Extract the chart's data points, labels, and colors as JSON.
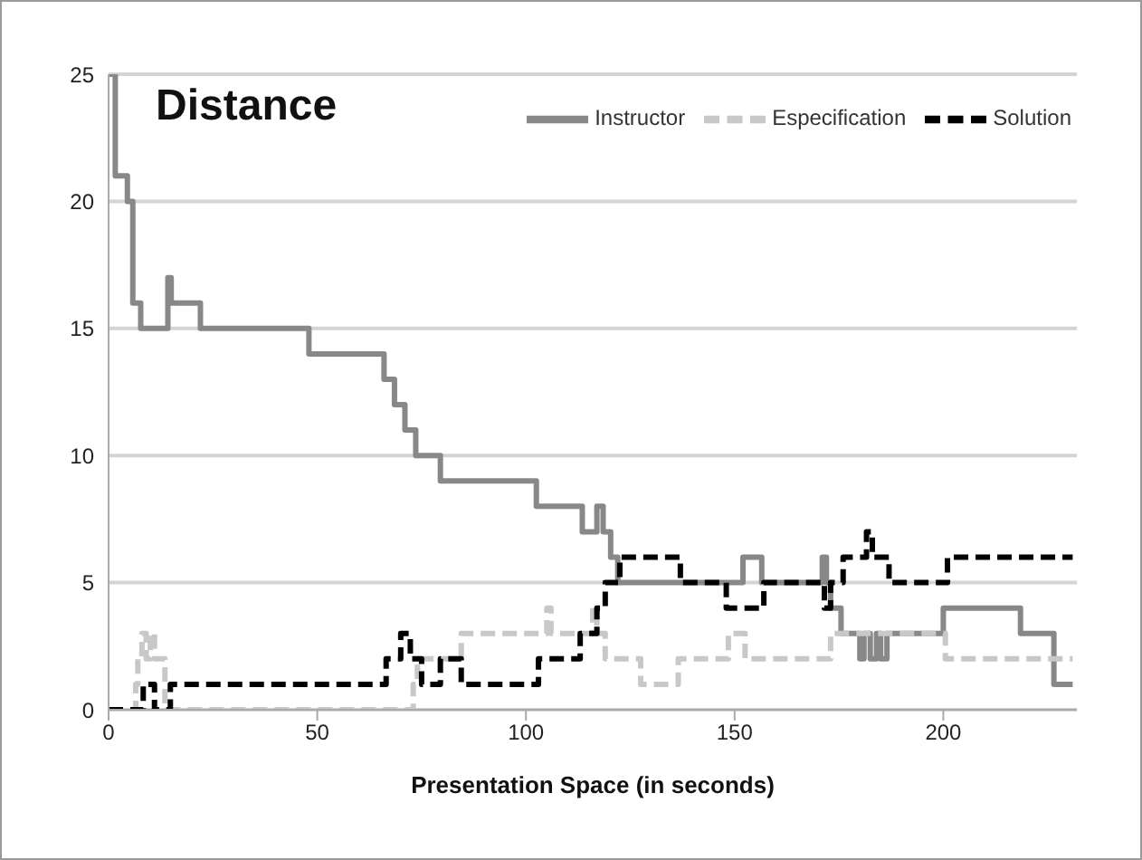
{
  "chart_data": {
    "type": "step",
    "title": "Distance",
    "xlabel": "Presentation Space (in seconds)",
    "xlim": [
      0,
      232
    ],
    "xticks": [
      0,
      50,
      100,
      150,
      200
    ],
    "ylim": [
      0,
      25
    ],
    "yticks": [
      0,
      5,
      10,
      15,
      20,
      25
    ],
    "grid": "y",
    "legend": "top right",
    "marker": "none",
    "series": [
      {
        "name": "Instructor",
        "color": "#888888",
        "line_style": "solid",
        "x": [
          0,
          1.6,
          4.5,
          5.8,
          7.7,
          12,
          14.2,
          15,
          22,
          48,
          66,
          68.5,
          71,
          73.6,
          79.5,
          102.5,
          113.5,
          117,
          118.5,
          120.3,
          122,
          152,
          156.5,
          171,
          172,
          173,
          175.5,
          180,
          181,
          182.5,
          184,
          185,
          186.5,
          200,
          218.5,
          226.5,
          231
        ],
        "values": [
          25,
          21,
          20,
          16,
          15,
          15,
          17,
          16,
          15,
          14,
          13,
          12,
          11,
          10,
          9,
          8,
          7,
          8,
          7,
          6,
          5,
          6,
          5,
          6,
          5,
          4,
          3,
          2,
          3,
          2,
          3,
          2,
          3,
          4,
          3,
          1,
          1
        ]
      },
      {
        "name": "Especification",
        "color": "#c8c8c8",
        "line_style": "dashed",
        "x": [
          0,
          6.5,
          7,
          8,
          9,
          10,
          11,
          13.5,
          72,
          73,
          74,
          84.5,
          104,
          105,
          106,
          116,
          117,
          119,
          127.5,
          136.5,
          148.5,
          152.5,
          173,
          200.5,
          231
        ],
        "values": [
          0,
          1,
          2,
          3,
          2,
          3,
          2,
          0,
          0,
          1,
          2,
          3,
          3,
          4,
          3,
          4,
          3,
          2,
          1,
          2,
          3,
          2,
          3,
          2,
          2
        ]
      },
      {
        "name": "Solution",
        "color": "#000000",
        "line_style": "dashed",
        "x": [
          0,
          8.3,
          11,
          14.8,
          66.5,
          70,
          72.3,
          75,
          79.5,
          84.5,
          103,
          113,
          117,
          119,
          122.5,
          137,
          148,
          157,
          171.5,
          173,
          176,
          181.6,
          183,
          187,
          201,
          231
        ],
        "values": [
          0,
          1,
          0,
          1,
          2,
          3,
          2,
          1,
          2,
          1,
          2,
          3,
          4,
          5,
          6,
          5,
          4,
          5,
          4,
          5,
          6,
          7,
          6,
          5,
          6,
          6
        ]
      }
    ]
  }
}
